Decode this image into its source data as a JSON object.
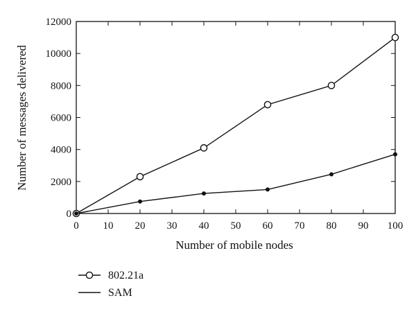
{
  "chart_data": {
    "type": "line",
    "xlabel": "Number of mobile nodes",
    "ylabel": "Number of messages delivered",
    "xlim": [
      0,
      100
    ],
    "ylim": [
      0,
      12000
    ],
    "xticks": [
      0,
      10,
      20,
      30,
      40,
      50,
      60,
      70,
      80,
      90,
      100
    ],
    "yticks": [
      0,
      2000,
      4000,
      6000,
      8000,
      10000,
      12000
    ],
    "x": [
      0,
      20,
      40,
      60,
      80,
      100
    ],
    "series": [
      {
        "name": "802.21a",
        "marker": "open-circle",
        "values": [
          0,
          2300,
          4100,
          6800,
          8000,
          11000
        ]
      },
      {
        "name": "SAM",
        "marker": "filled-dot",
        "values": [
          0,
          750,
          1250,
          1500,
          2450,
          3700
        ]
      }
    ],
    "grid": false,
    "legend": "bottom-left, below plot"
  }
}
